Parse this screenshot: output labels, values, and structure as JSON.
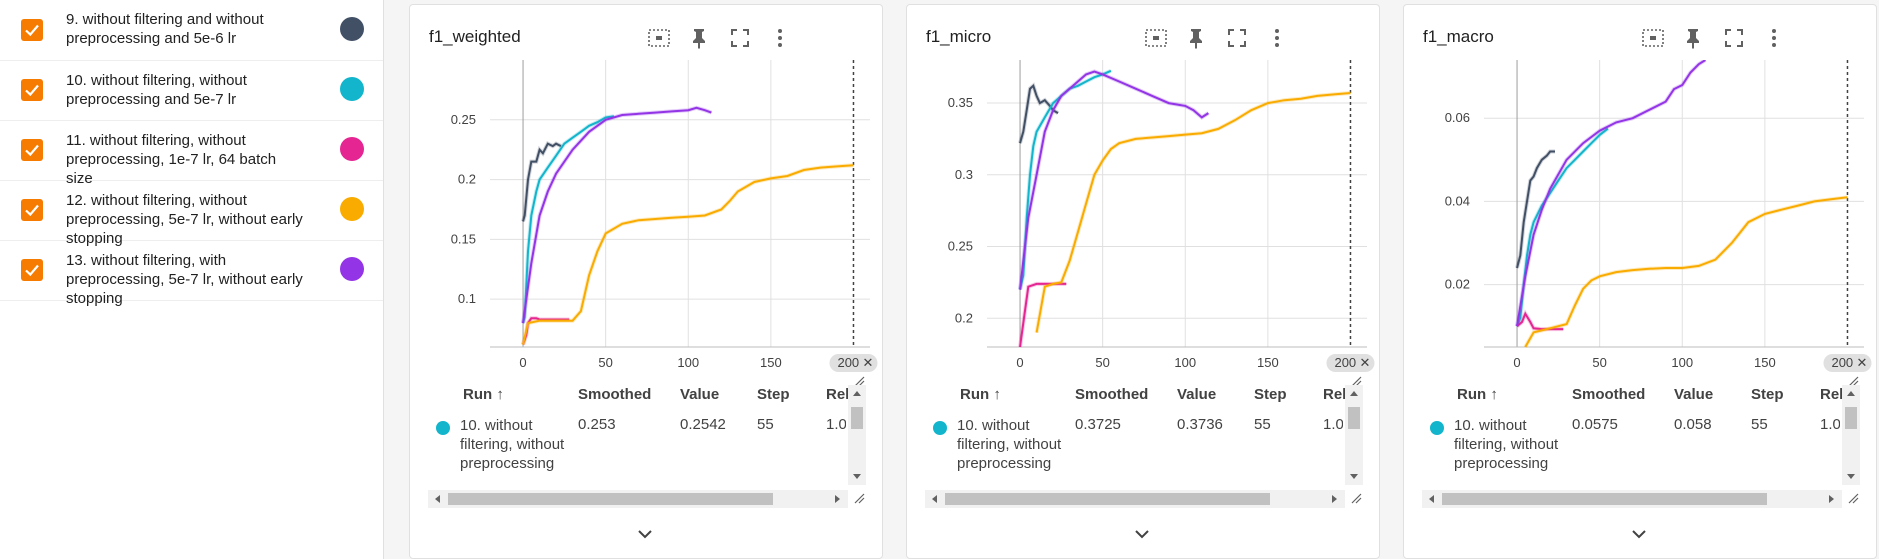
{
  "runs": [
    {
      "label": "9. without filtering and without preprocessing and 5e-6 lr",
      "color": "#425066",
      "checked": true
    },
    {
      "label": "10. without filtering, without preprocessing and 5e-7 lr",
      "color": "#12b5cb",
      "checked": true
    },
    {
      "label": "11. without filtering, without preprocessing, 1e-7 lr, 64 batch size",
      "color": "#e52592",
      "checked": true
    },
    {
      "label": "12. without filtering, without preprocessing, 5e-7 lr, without early stopping",
      "color": "#f9ab00",
      "checked": true
    },
    {
      "label": "13. without filtering, with preprocessing, 5e-7 lr, without early stopping",
      "color": "#9334e6",
      "checked": true
    }
  ],
  "toolbar_icons": [
    "fit-domain-icon",
    "pin-icon",
    "fullscreen-icon",
    "more-vert-icon"
  ],
  "table_headers": {
    "run": "Run ↑",
    "smoothed": "Smoothed",
    "value": "Value",
    "step": "Step",
    "rel": "Rel"
  },
  "cards": [
    {
      "title": "f1_weighted",
      "row": {
        "run": "10. without filtering, without preprocessing",
        "smoothed": "0.253",
        "value": "0.2542",
        "step": "55",
        "rel": "1.0"
      },
      "chart_data": {
        "type": "line",
        "x_ticks": [
          "0",
          "50",
          "100",
          "150",
          "200"
        ],
        "y_ticks": [
          "0.1",
          "0.15",
          "0.2",
          "0.25"
        ],
        "xlim": [
          -20,
          210
        ],
        "ylim": [
          0.06,
          0.3
        ],
        "step_marker": "200",
        "series": [
          {
            "color": "#425066",
            "x": [
              0,
              1,
              3,
              5,
              8,
              10,
              12,
              15,
              18,
              20,
              23
            ],
            "y": [
              0.165,
              0.17,
              0.2,
              0.215,
              0.215,
              0.225,
              0.222,
              0.23,
              0.228,
              0.23,
              0.228
            ]
          },
          {
            "color": "#12b5cb",
            "x": [
              0,
              1,
              3,
              5,
              8,
              10,
              15,
              20,
              25,
              30,
              35,
              40,
              45,
              50,
              55
            ],
            "y": [
              0.08,
              0.085,
              0.14,
              0.17,
              0.19,
              0.2,
              0.21,
              0.22,
              0.23,
              0.235,
              0.24,
              0.245,
              0.248,
              0.252,
              0.253
            ]
          },
          {
            "color": "#e52592",
            "x": [
              0,
              2,
              3,
              5,
              8,
              10,
              12,
              15,
              20,
              25,
              28
            ],
            "y": [
              0.062,
              0.07,
              0.08,
              0.084,
              0.084,
              0.083,
              0.083,
              0.083,
              0.083,
              0.083,
              0.083
            ]
          },
          {
            "color": "#f9ab00",
            "x": [
              0,
              3,
              10,
              20,
              30,
              35,
              40,
              45,
              50,
              60,
              70,
              80,
              90,
              100,
              110,
              120,
              125,
              130,
              140,
              150,
              160,
              170,
              180,
              190,
              200
            ],
            "y": [
              0.062,
              0.08,
              0.082,
              0.082,
              0.082,
              0.09,
              0.12,
              0.14,
              0.155,
              0.163,
              0.166,
              0.167,
              0.168,
              0.169,
              0.17,
              0.175,
              0.182,
              0.19,
              0.198,
              0.201,
              0.203,
              0.208,
              0.21,
              0.211,
              0.212
            ]
          },
          {
            "color": "#9334e6",
            "x": [
              0,
              5,
              10,
              15,
              20,
              30,
              40,
              50,
              60,
              70,
              80,
              90,
              100,
              105,
              110,
              114
            ],
            "y": [
              0.08,
              0.13,
              0.17,
              0.19,
              0.205,
              0.225,
              0.24,
              0.25,
              0.254,
              0.255,
              0.256,
              0.257,
              0.258,
              0.26,
              0.258,
              0.256
            ]
          }
        ]
      }
    },
    {
      "title": "f1_micro",
      "row": {
        "run": "10. without filtering, without preprocessing",
        "smoothed": "0.3725",
        "value": "0.3736",
        "step": "55",
        "rel": "1.0"
      },
      "chart_data": {
        "type": "line",
        "x_ticks": [
          "0",
          "50",
          "100",
          "150",
          "200"
        ],
        "y_ticks": [
          "0.2",
          "0.25",
          "0.3",
          "0.35"
        ],
        "xlim": [
          -20,
          210
        ],
        "ylim": [
          0.18,
          0.38
        ],
        "step_marker": "200",
        "series": [
          {
            "color": "#425066",
            "x": [
              0,
              2,
              4,
              6,
              8,
              10,
              12,
              15,
              18,
              20,
              23
            ],
            "y": [
              0.322,
              0.33,
              0.345,
              0.36,
              0.362,
              0.355,
              0.35,
              0.352,
              0.348,
              0.345,
              0.343
            ]
          },
          {
            "color": "#12b5cb",
            "x": [
              0,
              2,
              4,
              6,
              8,
              10,
              15,
              20,
              25,
              30,
              35,
              40,
              45,
              50,
              55
            ],
            "y": [
              0.22,
              0.23,
              0.27,
              0.3,
              0.32,
              0.33,
              0.34,
              0.35,
              0.355,
              0.36,
              0.362,
              0.365,
              0.368,
              0.37,
              0.3725
            ]
          },
          {
            "color": "#e52592",
            "x": [
              0,
              5,
              10,
              15,
              20,
              25,
              28
            ],
            "y": [
              0.18,
              0.222,
              0.224,
              0.224,
              0.224,
              0.224,
              0.224
            ]
          },
          {
            "color": "#f9ab00",
            "x": [
              10,
              15,
              20,
              25,
              30,
              35,
              40,
              45,
              50,
              55,
              60,
              70,
              80,
              90,
              100,
              110,
              120,
              130,
              140,
              150,
              160,
              170,
              180,
              190,
              200
            ],
            "y": [
              0.19,
              0.222,
              0.224,
              0.225,
              0.24,
              0.26,
              0.28,
              0.3,
              0.31,
              0.318,
              0.322,
              0.325,
              0.326,
              0.327,
              0.328,
              0.329,
              0.332,
              0.338,
              0.345,
              0.35,
              0.352,
              0.353,
              0.355,
              0.356,
              0.357
            ]
          },
          {
            "color": "#9334e6",
            "x": [
              0,
              5,
              10,
              15,
              20,
              25,
              30,
              35,
              40,
              45,
              50,
              60,
              70,
              80,
              90,
              100,
              105,
              110,
              114
            ],
            "y": [
              0.22,
              0.27,
              0.3,
              0.33,
              0.345,
              0.355,
              0.36,
              0.365,
              0.37,
              0.372,
              0.37,
              0.365,
              0.36,
              0.355,
              0.35,
              0.348,
              0.345,
              0.34,
              0.343
            ]
          }
        ]
      }
    },
    {
      "title": "f1_macro",
      "row": {
        "run": "10. without filtering, without preprocessing",
        "smoothed": "0.0575",
        "value": "0.058",
        "step": "55",
        "rel": "1.0"
      },
      "chart_data": {
        "type": "line",
        "x_ticks": [
          "0",
          "50",
          "100",
          "150",
          "200"
        ],
        "y_ticks": [
          "0.02",
          "0.04",
          "0.06"
        ],
        "xlim": [
          -20,
          210
        ],
        "ylim": [
          0.005,
          0.074
        ],
        "step_marker": "200",
        "series": [
          {
            "color": "#425066",
            "x": [
              0,
              2,
              4,
              6,
              8,
              10,
              12,
              15,
              18,
              20,
              23
            ],
            "y": [
              0.024,
              0.027,
              0.035,
              0.04,
              0.045,
              0.046,
              0.048,
              0.05,
              0.051,
              0.052,
              0.052
            ]
          },
          {
            "color": "#12b5cb",
            "x": [
              0,
              2,
              4,
              6,
              8,
              10,
              15,
              20,
              25,
              30,
              35,
              40,
              45,
              50,
              55
            ],
            "y": [
              0.01,
              0.012,
              0.02,
              0.027,
              0.032,
              0.035,
              0.039,
              0.042,
              0.045,
              0.048,
              0.05,
              0.052,
              0.054,
              0.056,
              0.0575
            ]
          },
          {
            "color": "#e52592",
            "x": [
              0,
              3,
              5,
              8,
              10,
              15,
              20,
              25,
              28
            ],
            "y": [
              0.01,
              0.011,
              0.013,
              0.011,
              0.0095,
              0.0093,
              0.0093,
              0.0093,
              0.0093
            ]
          },
          {
            "color": "#f9ab00",
            "x": [
              5,
              10,
              15,
              20,
              25,
              30,
              35,
              40,
              45,
              50,
              60,
              70,
              80,
              90,
              100,
              110,
              120,
              130,
              140,
              150,
              160,
              170,
              180,
              190,
              200
            ],
            "y": [
              0.005,
              0.0085,
              0.009,
              0.0095,
              0.01,
              0.0105,
              0.015,
              0.019,
              0.021,
              0.022,
              0.023,
              0.0235,
              0.0238,
              0.024,
              0.024,
              0.0245,
              0.026,
              0.03,
              0.035,
              0.037,
              0.038,
              0.039,
              0.04,
              0.0405,
              0.041
            ]
          },
          {
            "color": "#9334e6",
            "x": [
              0,
              5,
              10,
              15,
              20,
              30,
              40,
              50,
              60,
              70,
              80,
              90,
              95,
              100,
              105,
              110,
              114
            ],
            "y": [
              0.01,
              0.022,
              0.032,
              0.038,
              0.043,
              0.05,
              0.054,
              0.057,
              0.059,
              0.06,
              0.062,
              0.064,
              0.067,
              0.068,
              0.071,
              0.073,
              0.074
            ]
          }
        ]
      }
    }
  ]
}
